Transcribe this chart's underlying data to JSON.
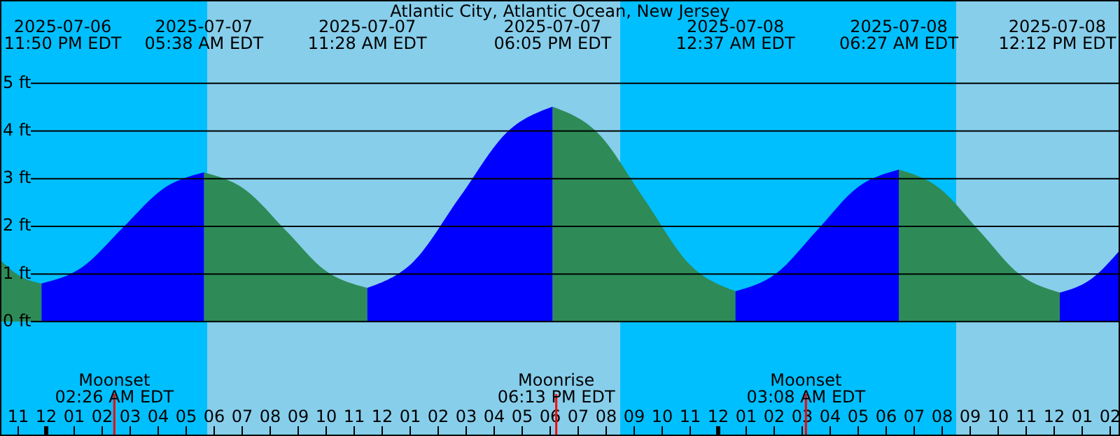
{
  "chart_data": {
    "type": "area",
    "title": "Atlantic City, Atlantic Ocean, New Jersey",
    "xlim": [
      "2025-07-06T22:21",
      "2025-07-08T14:21"
    ],
    "ylim": [
      -2.4,
      6.75
    ],
    "yticks": [
      {
        "value": 0,
        "label": "0 ft"
      },
      {
        "value": 1,
        "label": "1 ft"
      },
      {
        "value": 2,
        "label": "2 ft"
      },
      {
        "value": 3,
        "label": "3 ft"
      },
      {
        "value": 4,
        "label": "4 ft"
      },
      {
        "value": 5,
        "label": "5 ft"
      }
    ],
    "xticks": [
      {
        "value": "2025-07-06T23:00",
        "label": "11"
      },
      {
        "value": "2025-07-07T00:00",
        "label": "12"
      },
      {
        "value": "2025-07-07T01:00",
        "label": "01"
      },
      {
        "value": "2025-07-07T02:00",
        "label": "02"
      },
      {
        "value": "2025-07-07T03:00",
        "label": "03"
      },
      {
        "value": "2025-07-07T04:00",
        "label": "04"
      },
      {
        "value": "2025-07-07T05:00",
        "label": "05"
      },
      {
        "value": "2025-07-07T06:00",
        "label": "06"
      },
      {
        "value": "2025-07-07T07:00",
        "label": "07"
      },
      {
        "value": "2025-07-07T08:00",
        "label": "08"
      },
      {
        "value": "2025-07-07T09:00",
        "label": "09"
      },
      {
        "value": "2025-07-07T10:00",
        "label": "10"
      },
      {
        "value": "2025-07-07T11:00",
        "label": "11"
      },
      {
        "value": "2025-07-07T12:00",
        "label": "12"
      },
      {
        "value": "2025-07-07T13:00",
        "label": "01"
      },
      {
        "value": "2025-07-07T14:00",
        "label": "02"
      },
      {
        "value": "2025-07-07T15:00",
        "label": "03"
      },
      {
        "value": "2025-07-07T16:00",
        "label": "04"
      },
      {
        "value": "2025-07-07T17:00",
        "label": "05"
      },
      {
        "value": "2025-07-07T18:00",
        "label": "06"
      },
      {
        "value": "2025-07-07T19:00",
        "label": "07"
      },
      {
        "value": "2025-07-07T20:00",
        "label": "08"
      },
      {
        "value": "2025-07-07T21:00",
        "label": "09"
      },
      {
        "value": "2025-07-07T22:00",
        "label": "10"
      },
      {
        "value": "2025-07-07T23:00",
        "label": "11"
      },
      {
        "value": "2025-07-08T00:00",
        "label": "12"
      },
      {
        "value": "2025-07-08T01:00",
        "label": "01"
      },
      {
        "value": "2025-07-08T02:00",
        "label": "02"
      },
      {
        "value": "2025-07-08T03:00",
        "label": "03"
      },
      {
        "value": "2025-07-08T04:00",
        "label": "04"
      },
      {
        "value": "2025-07-08T05:00",
        "label": "05"
      },
      {
        "value": "2025-07-08T06:00",
        "label": "06"
      },
      {
        "value": "2025-07-08T07:00",
        "label": "07"
      },
      {
        "value": "2025-07-08T08:00",
        "label": "08"
      },
      {
        "value": "2025-07-08T09:00",
        "label": "09"
      },
      {
        "value": "2025-07-08T10:00",
        "label": "10"
      },
      {
        "value": "2025-07-08T11:00",
        "label": "11"
      },
      {
        "value": "2025-07-08T12:00",
        "label": "12"
      },
      {
        "value": "2025-07-08T13:00",
        "label": "01"
      },
      {
        "value": "2025-07-08T14:00",
        "label": "02"
      }
    ],
    "grid": "y",
    "x": [
      "2025-07-06T22:21",
      "2025-07-06T23:05",
      "2025-07-06T23:50",
      "2025-07-07T01:17",
      "2025-07-07T02:44",
      "2025-07-07T04:11",
      "2025-07-07T05:38",
      "2025-07-07T07:05",
      "2025-07-07T08:33",
      "2025-07-07T10:00",
      "2025-07-07T11:28",
      "2025-07-07T13:07",
      "2025-07-07T14:46",
      "2025-07-07T16:26",
      "2025-07-07T18:05",
      "2025-07-07T19:43",
      "2025-07-07T21:21",
      "2025-07-07T22:59",
      "2025-07-08T00:37",
      "2025-07-08T02:04",
      "2025-07-08T03:32",
      "2025-07-08T04:59",
      "2025-07-08T06:27",
      "2025-07-08T07:53",
      "2025-07-08T09:20",
      "2025-07-08T10:46",
      "2025-07-08T12:12",
      "2025-07-08T13:20",
      "2025-07-08T14:21"
    ],
    "series": [
      {
        "color": "#2e8b57",
        "values": [
          1.3,
          0.95,
          0.8,
          null,
          null,
          null,
          3.13,
          2.78,
          1.92,
          1.06,
          0.71,
          null,
          null,
          null,
          4.51,
          3.95,
          2.58,
          1.2,
          0.64,
          null,
          null,
          null,
          3.19,
          2.81,
          1.9,
          0.99,
          0.61,
          null,
          null
        ]
      },
      {
        "color": "#0000ff",
        "values": [
          null,
          null,
          0.8,
          1.14,
          1.97,
          2.79,
          3.13,
          null,
          null,
          null,
          0.71,
          1.26,
          2.61,
          3.96,
          4.51,
          null,
          null,
          null,
          0.64,
          1.01,
          1.92,
          2.82,
          3.19,
          null,
          null,
          null,
          0.61,
          0.9,
          1.5
        ]
      }
    ],
    "bands": [
      {
        "axis": "x",
        "from": "2025-07-06T22:21",
        "to": "2025-07-07T05:45",
        "color": "#00bfff"
      },
      {
        "axis": "x",
        "from": "2025-07-07T05:45",
        "to": "2025-07-07T20:30",
        "color": "#87ceeb"
      },
      {
        "axis": "x",
        "from": "2025-07-07T20:30",
        "to": "2025-07-08T08:30",
        "color": "#00bfff"
      },
      {
        "axis": "x",
        "from": "2025-07-08T08:30",
        "to": "2025-07-08T14:21",
        "color": "#87ceeb"
      }
    ],
    "ref_lines": [
      {
        "axis": "x",
        "value": "2025-07-07T02:26",
        "label": "Moonset\n02:26 AM EDT",
        "color": "#ff0000"
      },
      {
        "axis": "x",
        "value": "2025-07-07T18:13",
        "label": "Moonrise\n06:13 PM EDT",
        "color": "#ff0000"
      },
      {
        "axis": "x",
        "value": "2025-07-08T03:08",
        "label": "Moonset\n03:08 AM EDT",
        "color": "#ff0000"
      }
    ],
    "annotations": [
      "2025-07-06\n11:50 PM EDT",
      "2025-07-07\n05:38 AM EDT",
      "2025-07-07\n11:28 AM EDT",
      "2025-07-07\n06:05 PM EDT",
      "2025-07-08\n12:37 AM EDT",
      "2025-07-08\n06:27 AM EDT",
      "2025-07-08\n12:12 PM EDT"
    ]
  }
}
